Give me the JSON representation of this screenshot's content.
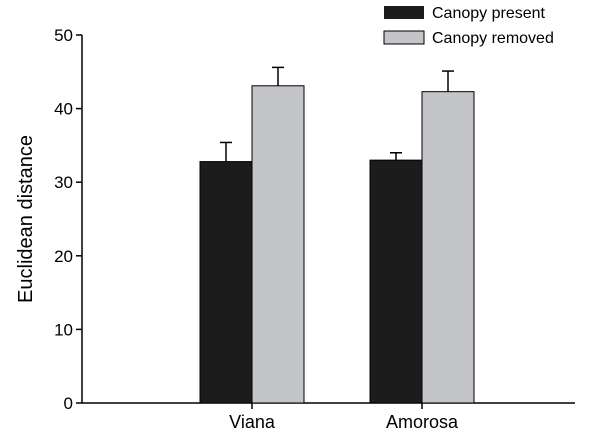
{
  "chart_data": {
    "type": "bar",
    "categories": [
      "Viana",
      "Amorosa"
    ],
    "series": [
      {
        "name": "Canopy present",
        "values": [
          32.8,
          33.0
        ],
        "errors": [
          2.6,
          1.0
        ],
        "color": "#1c1c1c"
      },
      {
        "name": "Canopy removed",
        "values": [
          43.1,
          42.3
        ],
        "errors": [
          2.5,
          2.8
        ],
        "color": "#c3c5c8"
      }
    ],
    "xlabel": "",
    "ylabel": "Euclidean distance",
    "ylim": [
      0,
      50
    ],
    "yticks": [
      0,
      10,
      20,
      30,
      40,
      50
    ],
    "grid": false,
    "legend": "top-right"
  }
}
